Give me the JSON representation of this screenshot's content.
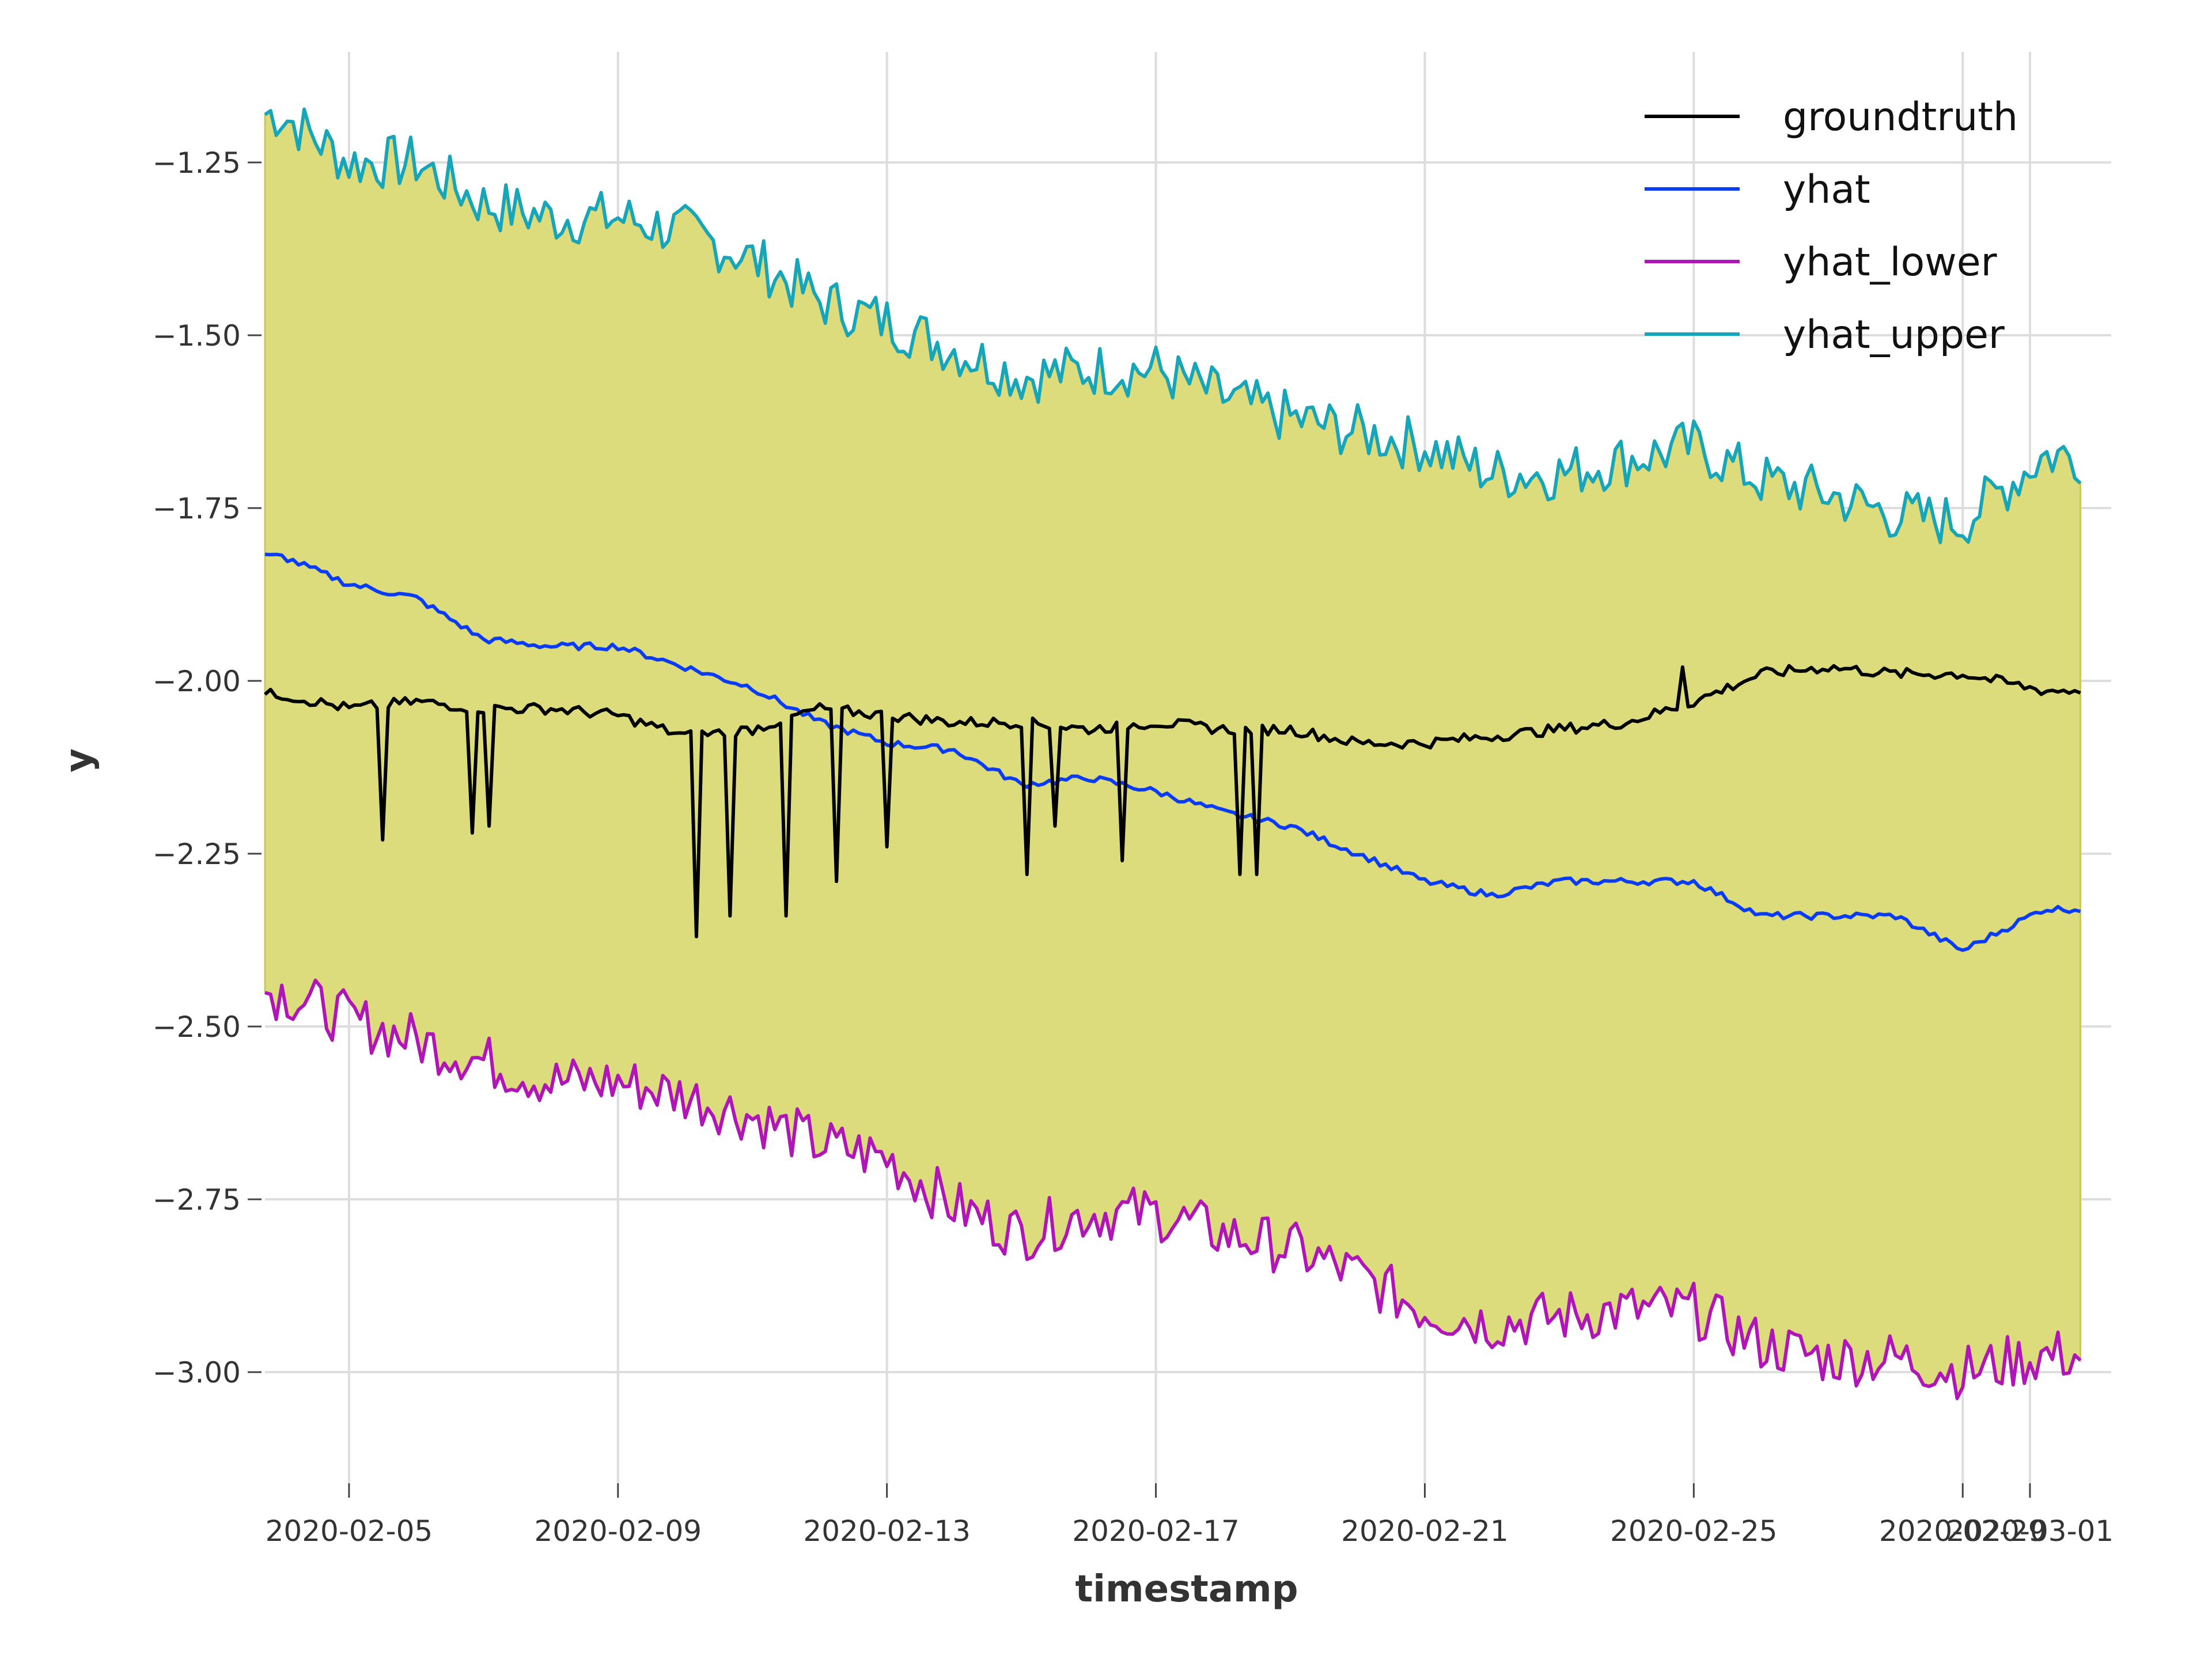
{
  "chart_data": {
    "type": "line",
    "xlabel": "timestamp",
    "ylabel": "y",
    "ylim": [
      -3.14,
      -1.14
    ],
    "xlim": [
      "2020-02-03T18:00",
      "2020-03-02T05:00"
    ],
    "grid": true,
    "legend_position": "top-right",
    "x_ticks": [
      "2020-02-05",
      "2020-02-09",
      "2020-02-13",
      "2020-02-17",
      "2020-02-21",
      "2020-02-25",
      "2020-02-29",
      "2020-03-01"
    ],
    "y_ticks": [
      "−1.25",
      "−1.50",
      "−1.75",
      "−2.00",
      "−2.25",
      "−2.50",
      "−2.75",
      "−3.00"
    ],
    "y_tick_values": [
      -1.25,
      -1.5,
      -1.75,
      -2.0,
      -2.25,
      -2.5,
      -2.75,
      -3.0
    ],
    "fill_between": {
      "lower": "yhat_lower",
      "upper": "yhat_upper",
      "color": "#dcdc7c"
    },
    "x": [
      "2020-02-04",
      "2020-02-05",
      "2020-02-06",
      "2020-02-07",
      "2020-02-08",
      "2020-02-09",
      "2020-02-10",
      "2020-02-11",
      "2020-02-12",
      "2020-02-13",
      "2020-02-14",
      "2020-02-15",
      "2020-02-16",
      "2020-02-17",
      "2020-02-18",
      "2020-02-19",
      "2020-02-20",
      "2020-02-21",
      "2020-02-22",
      "2020-02-23",
      "2020-02-24",
      "2020-02-25",
      "2020-02-26",
      "2020-02-27",
      "2020-02-28",
      "2020-02-29",
      "2020-03-01"
    ],
    "series": [
      {
        "name": "groundtruth",
        "color": "#000000",
        "values": [
          -2.02,
          -2.04,
          -2.03,
          -2.04,
          -2.04,
          -2.05,
          -2.08,
          -2.07,
          -2.04,
          -2.05,
          -2.06,
          -2.06,
          -2.07,
          -2.06,
          -2.07,
          -2.07,
          -2.09,
          -2.09,
          -2.08,
          -2.07,
          -2.06,
          -2.03,
          -1.99,
          -1.98,
          -1.99,
          -1.99,
          -2.01
        ]
      },
      {
        "name": "yhat",
        "color": "#0b3cf5",
        "values": [
          -1.82,
          -1.86,
          -1.88,
          -1.94,
          -1.95,
          -1.95,
          -1.98,
          -2.01,
          -2.06,
          -2.09,
          -2.1,
          -2.15,
          -2.14,
          -2.16,
          -2.19,
          -2.21,
          -2.25,
          -2.29,
          -2.31,
          -2.29,
          -2.29,
          -2.29,
          -2.34,
          -2.34,
          -2.34,
          -2.39,
          -2.34
        ]
      },
      {
        "name": "yhat_lower",
        "color": "#b015b8",
        "values": [
          -2.45,
          -2.49,
          -2.52,
          -2.55,
          -2.58,
          -2.58,
          -2.6,
          -2.63,
          -2.67,
          -2.69,
          -2.76,
          -2.8,
          -2.77,
          -2.77,
          -2.8,
          -2.82,
          -2.86,
          -2.91,
          -2.93,
          -2.92,
          -2.91,
          -2.91,
          -2.96,
          -2.98,
          -2.98,
          -3.0,
          -2.98
        ]
      },
      {
        "name": "yhat_upper",
        "color": "#17a5b9",
        "values": [
          -1.18,
          -1.25,
          -1.25,
          -1.31,
          -1.33,
          -1.33,
          -1.35,
          -1.39,
          -1.45,
          -1.48,
          -1.52,
          -1.56,
          -1.55,
          -1.55,
          -1.59,
          -1.62,
          -1.64,
          -1.66,
          -1.7,
          -1.7,
          -1.68,
          -1.66,
          -1.71,
          -1.73,
          -1.76,
          -1.77,
          -1.69
        ]
      }
    ],
    "spikes": [
      {
        "date": "2020-02-05T12:00",
        "value": -2.23
      },
      {
        "date": "2020-02-06T19:00",
        "value": -2.22
      },
      {
        "date": "2020-02-07T02:00",
        "value": -2.21
      },
      {
        "date": "2020-02-10T05:00",
        "value": -2.37
      },
      {
        "date": "2020-02-10T16:00",
        "value": -2.34
      },
      {
        "date": "2020-02-11T12:00",
        "value": -2.34
      },
      {
        "date": "2020-02-12T06:00",
        "value": -2.29
      },
      {
        "date": "2020-02-13T00:00",
        "value": -2.24
      },
      {
        "date": "2020-02-15T02:00",
        "value": -2.28
      },
      {
        "date": "2020-02-15T11:00",
        "value": -2.21
      },
      {
        "date": "2020-02-16T13:00",
        "value": -2.26
      },
      {
        "date": "2020-02-18T05:00",
        "value": -2.28
      },
      {
        "date": "2020-02-18T13:00",
        "value": -2.28
      }
    ],
    "upward_spikes": [
      {
        "date": "2020-02-24T19:00",
        "value": -1.98
      }
    ]
  }
}
